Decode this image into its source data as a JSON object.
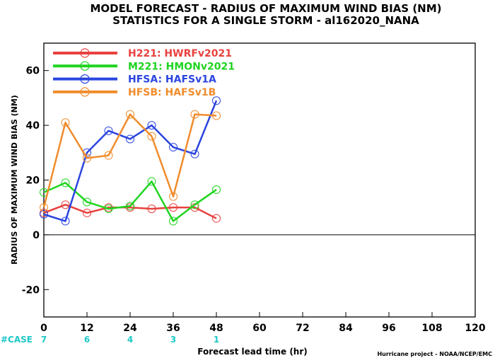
{
  "chart_data": {
    "type": "line",
    "title": "MODEL FORECAST - RADIUS OF MAXIMUM WIND BIAS (NM)",
    "subtitle": "STATISTICS FOR A SINGLE STORM - al162020_NANA",
    "xlabel": "Forecast lead time (hr)",
    "ylabel": "RADIUS OF MAXIMUM WIND BIAS (NM)",
    "xlim": [
      0,
      120
    ],
    "ylim": [
      -30,
      70
    ],
    "x_ticks": [
      0,
      12,
      24,
      36,
      48,
      60,
      72,
      84,
      96,
      108,
      120
    ],
    "y_ticks": [
      -20,
      0,
      20,
      40,
      60
    ],
    "zero_line": true,
    "legend_position": "top-left",
    "series": [
      {
        "name": "H221: HWRFv2021",
        "color": "#e8413e",
        "x": [
          0,
          6,
          12,
          18,
          24,
          30,
          36,
          42,
          48
        ],
        "values": [
          8,
          11,
          8,
          10,
          10,
          9.5,
          10,
          10,
          6
        ]
      },
      {
        "name": "M221: HMONv2021",
        "color": "#1fd41f",
        "x": [
          0,
          6,
          12,
          18,
          24,
          30,
          36,
          42,
          48
        ],
        "values": [
          15.5,
          19,
          12,
          9.5,
          10.5,
          19.5,
          5,
          11,
          16.5
        ]
      },
      {
        "name": "HFSA: HAFSv1A",
        "color": "#2a45e0",
        "x": [
          0,
          6,
          12,
          18,
          24,
          30,
          36,
          42,
          48
        ],
        "values": [
          7.5,
          5,
          30,
          38,
          35,
          40,
          32,
          29.5,
          49
        ]
      },
      {
        "name": "HFSB: HAFSv1B",
        "color": "#f08c2c",
        "x": [
          0,
          6,
          12,
          18,
          24,
          30,
          36,
          42,
          48
        ],
        "values": [
          10,
          41,
          28,
          29,
          44,
          36,
          14,
          44,
          43.5
        ]
      }
    ],
    "case_counts": {
      "label": "#CASE",
      "color": "#1ec8c8",
      "x": [
        0,
        12,
        24,
        36,
        48
      ],
      "values": [
        "7",
        "6",
        "4",
        "3",
        "1"
      ]
    },
    "credit": "Hurricane project - NOAA/NCEP/EMC"
  }
}
